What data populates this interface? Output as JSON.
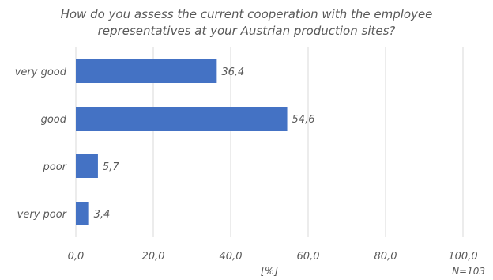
{
  "chart_data": {
    "type": "bar",
    "orientation": "horizontal",
    "title_lines": [
      "How do you assess the current cooperation with the employee",
      "representatives at your Austrian production sites?"
    ],
    "categories": [
      "very good",
      "good",
      "poor",
      "very poor"
    ],
    "values": [
      36.4,
      54.6,
      5.7,
      3.4
    ],
    "data_labels": [
      "36,4",
      "54,6",
      "5,7",
      "3,4"
    ],
    "xticks": [
      0,
      20,
      40,
      60,
      80,
      100
    ],
    "xtick_labels": [
      "0,0",
      "20,0",
      "40,0",
      "60,0",
      "80,0",
      "100,0"
    ],
    "xlim": [
      0,
      100
    ],
    "xlabel": "[%]",
    "note": "N=103",
    "grid": "vertical",
    "bar_color": "#4472c4",
    "grid_color": "#d9d9d9"
  }
}
